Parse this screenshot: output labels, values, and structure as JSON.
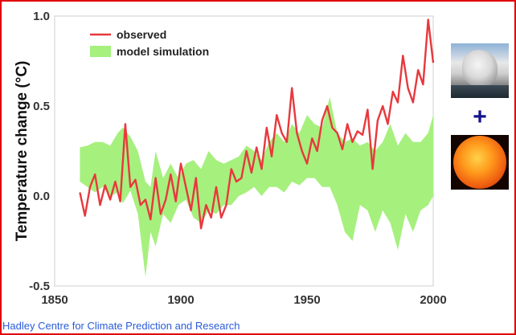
{
  "chart_data": {
    "type": "line",
    "title": "",
    "xlabel": "",
    "ylabel": "Temperature change (°C)",
    "xlim": [
      1850,
      2000
    ],
    "ylim": [
      -0.5,
      1.0
    ],
    "x_ticks": [
      "1850",
      "1900",
      "1950",
      "2000"
    ],
    "y_ticks": [
      "-0.5",
      "0.0",
      "0.5",
      "1.0"
    ],
    "legend_position": "top-left",
    "grid": false,
    "series": [
      {
        "name": "observed",
        "kind": "line",
        "color": "#e8383d",
        "x": [
          1860,
          1862,
          1864,
          1866,
          1868,
          1870,
          1872,
          1874,
          1876,
          1878,
          1879,
          1880,
          1882,
          1884,
          1886,
          1888,
          1890,
          1892,
          1894,
          1896,
          1898,
          1900,
          1902,
          1904,
          1906,
          1908,
          1910,
          1912,
          1914,
          1916,
          1918,
          1920,
          1922,
          1924,
          1926,
          1928,
          1930,
          1932,
          1934,
          1936,
          1938,
          1940,
          1942,
          1944,
          1946,
          1948,
          1950,
          1952,
          1954,
          1956,
          1958,
          1960,
          1962,
          1964,
          1966,
          1968,
          1970,
          1972,
          1974,
          1976,
          1978,
          1980,
          1982,
          1984,
          1986,
          1988,
          1990,
          1992,
          1994,
          1996,
          1998,
          2000
        ],
        "y": [
          0.02,
          -0.11,
          0.05,
          0.12,
          -0.05,
          0.06,
          -0.02,
          0.08,
          -0.03,
          0.4,
          0.22,
          0.05,
          0.09,
          -0.05,
          -0.02,
          -0.13,
          0.1,
          -0.1,
          -0.02,
          0.12,
          -0.03,
          0.18,
          0.05,
          -0.08,
          0.1,
          -0.18,
          -0.05,
          -0.12,
          0.05,
          -0.12,
          -0.05,
          0.15,
          0.08,
          0.1,
          0.25,
          0.13,
          0.27,
          0.15,
          0.38,
          0.22,
          0.45,
          0.35,
          0.3,
          0.6,
          0.35,
          0.25,
          0.18,
          0.32,
          0.25,
          0.42,
          0.5,
          0.38,
          0.35,
          0.26,
          0.4,
          0.3,
          0.36,
          0.34,
          0.48,
          0.15,
          0.42,
          0.5,
          0.4,
          0.58,
          0.52,
          0.78,
          0.6,
          0.52,
          0.7,
          0.62,
          0.98,
          0.74
        ]
      },
      {
        "name": "model simulation",
        "kind": "band",
        "color": "#a6f07e",
        "x": [
          1860,
          1863,
          1866,
          1869,
          1872,
          1875,
          1877,
          1880,
          1883,
          1886,
          1888,
          1890,
          1893,
          1896,
          1899,
          1902,
          1905,
          1908,
          1911,
          1914,
          1917,
          1920,
          1923,
          1926,
          1929,
          1932,
          1935,
          1938,
          1941,
          1944,
          1947,
          1950,
          1953,
          1956,
          1959,
          1962,
          1965,
          1968,
          1971,
          1974,
          1977,
          1980,
          1983,
          1986,
          1989,
          1992,
          1995,
          1998,
          2000
        ],
        "lower": [
          0.08,
          0.05,
          0.02,
          0.05,
          0.0,
          0.02,
          -0.04,
          0.03,
          -0.1,
          -0.45,
          -0.2,
          -0.28,
          -0.1,
          -0.15,
          -0.05,
          -0.02,
          -0.12,
          -0.15,
          -0.08,
          -0.1,
          -0.05,
          -0.05,
          0.0,
          0.02,
          0.05,
          0.0,
          0.05,
          0.05,
          0.02,
          0.08,
          0.06,
          0.1,
          0.1,
          0.05,
          0.05,
          -0.05,
          -0.2,
          -0.25,
          -0.05,
          -0.08,
          -0.2,
          -0.08,
          -0.15,
          -0.3,
          -0.1,
          -0.2,
          -0.08,
          -0.05,
          0.0
        ],
        "upper": [
          0.27,
          0.28,
          0.3,
          0.3,
          0.28,
          0.35,
          0.38,
          0.33,
          0.25,
          0.08,
          0.05,
          0.25,
          0.1,
          0.18,
          0.1,
          0.18,
          0.2,
          0.15,
          0.25,
          0.2,
          0.18,
          0.2,
          0.22,
          0.28,
          0.25,
          0.2,
          0.3,
          0.35,
          0.3,
          0.4,
          0.35,
          0.45,
          0.4,
          0.38,
          0.55,
          0.35,
          0.3,
          0.32,
          0.28,
          0.3,
          0.25,
          0.3,
          0.4,
          0.28,
          0.35,
          0.3,
          0.3,
          0.35,
          0.45
        ]
      }
    ]
  },
  "legend": {
    "observed_label": "observed",
    "model_label": "model simulation"
  },
  "images": {
    "volcano": "volcanic-eruption-photo",
    "plus": "+",
    "sun": "sun-photo"
  },
  "credit": "Hadley Centre for Climate Prediction and Research"
}
